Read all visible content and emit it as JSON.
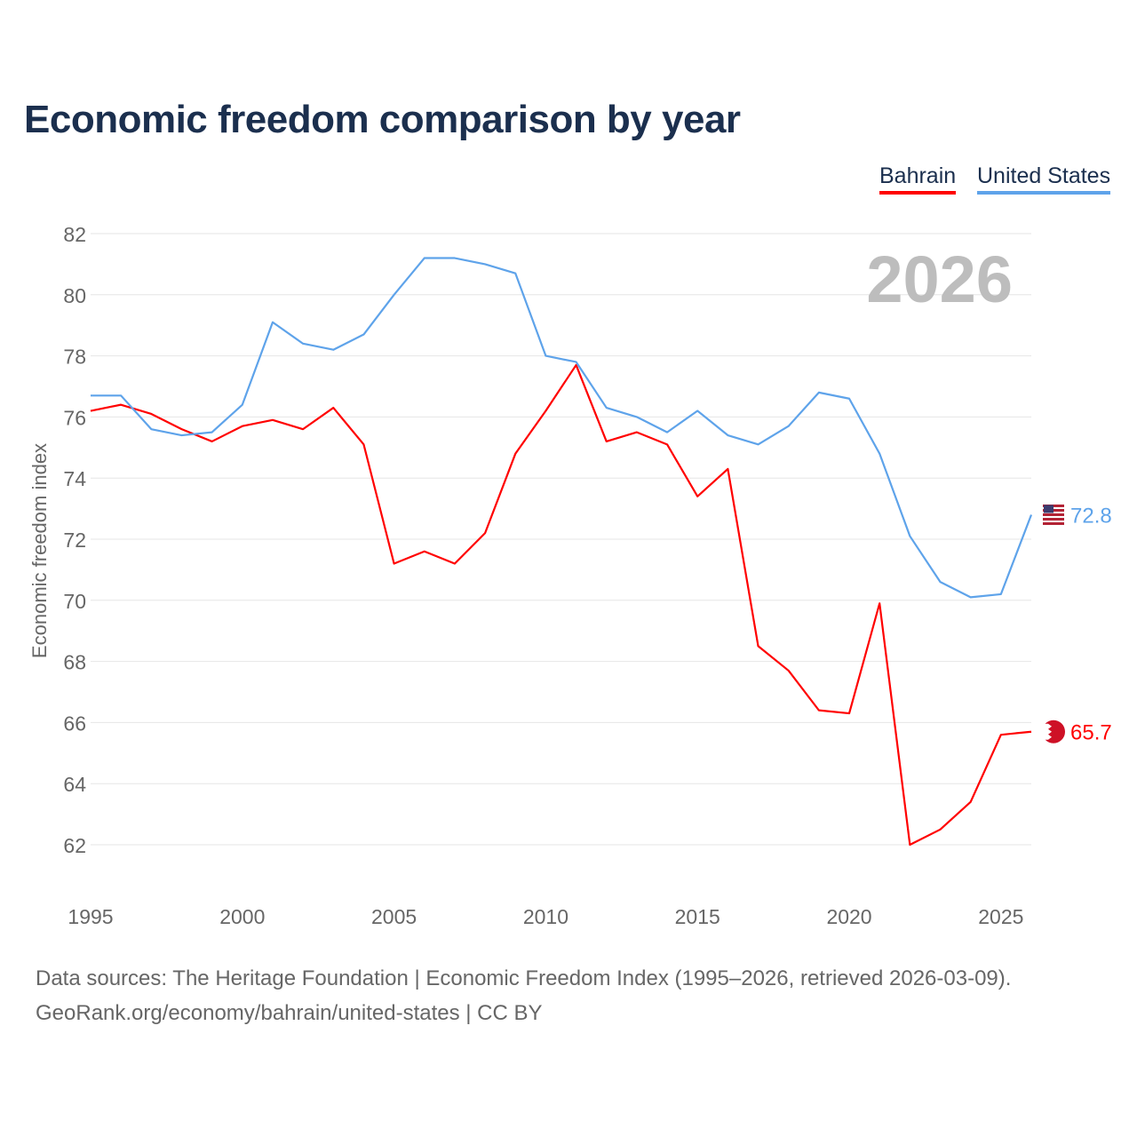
{
  "chart_data": {
    "type": "line",
    "title": "Economic freedom comparison by year",
    "ylabel": "Economic freedom index",
    "xlabel": "",
    "year_label": "2026",
    "ylim": [
      60.5,
      82.5
    ],
    "xlim": [
      1995,
      2026
    ],
    "yticks": [
      62,
      64,
      66,
      68,
      70,
      72,
      74,
      76,
      78,
      80,
      82
    ],
    "xticks": [
      1995,
      2000,
      2005,
      2010,
      2015,
      2020,
      2025
    ],
    "grid": true,
    "legend_position": "top-right",
    "x": [
      1995,
      1996,
      1997,
      1998,
      1999,
      2000,
      2001,
      2002,
      2003,
      2004,
      2005,
      2006,
      2007,
      2008,
      2009,
      2010,
      2011,
      2012,
      2013,
      2014,
      2015,
      2016,
      2017,
      2018,
      2019,
      2020,
      2021,
      2022,
      2023,
      2024,
      2025,
      2026
    ],
    "series": [
      {
        "name": "Bahrain",
        "color": "#ff0000",
        "end_label": "65.7",
        "flag": "bahrain-flag",
        "values": [
          76.2,
          76.4,
          76.1,
          75.6,
          75.2,
          75.7,
          75.9,
          75.6,
          76.3,
          75.1,
          71.2,
          71.6,
          71.2,
          72.2,
          74.8,
          76.2,
          77.7,
          75.2,
          75.5,
          75.1,
          73.4,
          74.3,
          68.5,
          67.7,
          66.4,
          66.3,
          69.9,
          62.0,
          62.5,
          63.4,
          65.6,
          65.7
        ]
      },
      {
        "name": "United States",
        "color": "#5ea3ea",
        "end_label": "72.8",
        "flag": "us-flag",
        "values": [
          76.7,
          76.7,
          75.6,
          75.4,
          75.5,
          76.4,
          79.1,
          78.4,
          78.2,
          78.7,
          80.0,
          81.2,
          81.2,
          81.0,
          80.7,
          78.0,
          77.8,
          76.3,
          76.0,
          75.5,
          76.2,
          75.4,
          75.1,
          75.7,
          76.8,
          76.6,
          74.8,
          72.1,
          70.6,
          70.1,
          70.2,
          72.8
        ]
      }
    ]
  },
  "footer": {
    "line1": "Data sources: The Heritage Foundation | Economic Freedom Index (1995–2026, retrieved 2026-03-09).",
    "line2": "GeoRank.org/economy/bahrain/united-states | CC BY"
  }
}
